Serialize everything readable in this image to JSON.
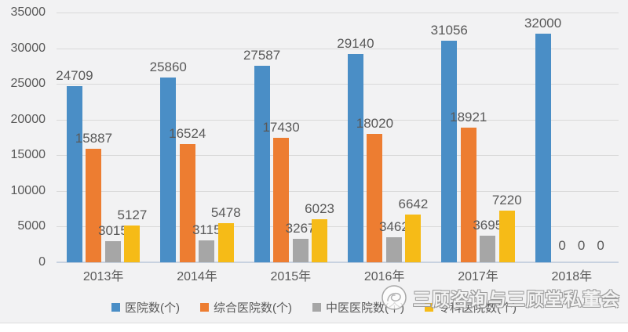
{
  "chart_data": {
    "type": "bar",
    "title": "",
    "categories": [
      "2013年",
      "2014年",
      "2015年",
      "2016年",
      "2017年",
      "2018年"
    ],
    "series": [
      {
        "name": "医院数(个)",
        "color": "#4A8EC6",
        "values": [
          24709,
          25860,
          27587,
          29140,
          31056,
          32000
        ]
      },
      {
        "name": "综合医院数(个)",
        "color": "#ED7D31",
        "values": [
          15887,
          16524,
          17430,
          18020,
          18921,
          0
        ]
      },
      {
        "name": "中医医院数(个)",
        "color": "#A6A6A6",
        "values": [
          3015,
          3115,
          3267,
          3462,
          3695,
          0
        ]
      },
      {
        "name": "专科医院数(个)",
        "color": "#F6BB17",
        "values": [
          5127,
          5478,
          6023,
          6642,
          7220,
          0
        ]
      }
    ],
    "ylim": [
      0,
      35000
    ],
    "ytick_step": 5000,
    "yticks": [
      35000,
      30000,
      25000,
      20000,
      15000,
      10000,
      5000,
      0
    ],
    "grid": true,
    "legend_position": "bottom",
    "data_labels": "outside-end",
    "zero_labels_shown": true
  },
  "colors": {
    "text": "#595959",
    "gridline": "#D9D9D9",
    "axis": "#C8D2E0",
    "background": "#F2F2F3"
  },
  "watermark": {
    "text": "三顾咨询与三顾堂私董会",
    "logo": "swirl-circle-logo"
  }
}
